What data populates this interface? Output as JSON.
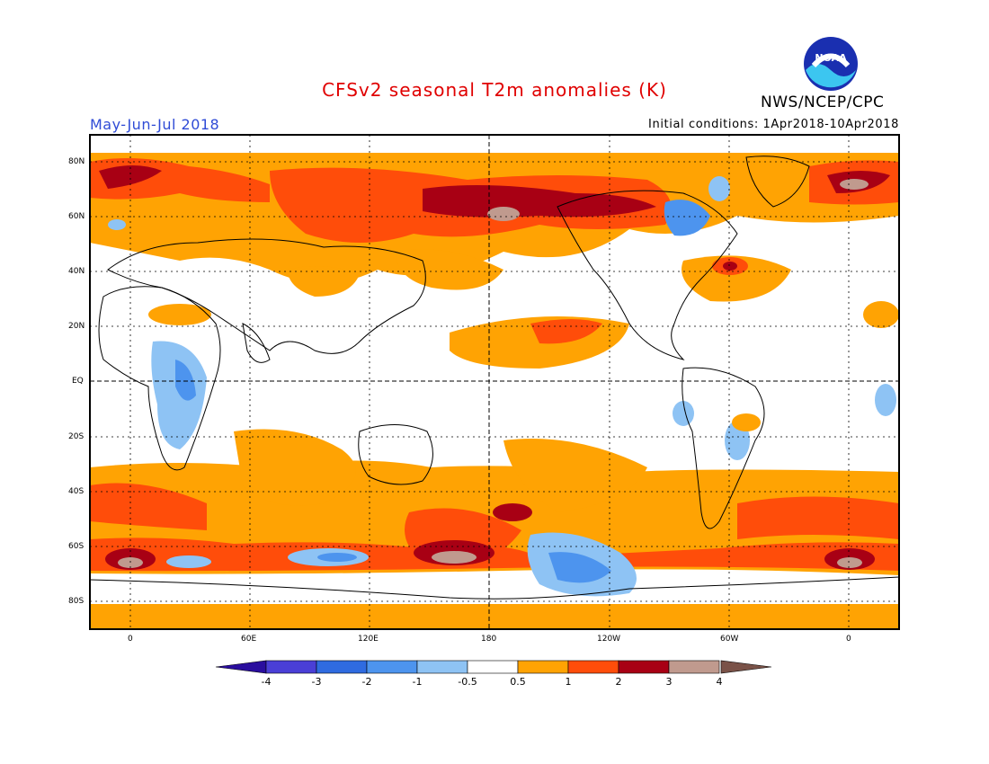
{
  "title": "CFSv2 seasonal T2m anomalies (K)",
  "period": "May-Jun-Jul 2018",
  "initial_conditions": "Initial conditions: 1Apr2018-10Apr2018",
  "agency": "NWS/NCEP/CPC",
  "logo_text": "NOAA",
  "lat_labels": [
    "80N",
    "60N",
    "40N",
    "20N",
    "EQ",
    "20S",
    "40S",
    "60S",
    "80S"
  ],
  "lon_labels": [
    "0",
    "60E",
    "120E",
    "180",
    "120W",
    "60W",
    "0"
  ],
  "colorbar": {
    "labels": [
      "-4",
      "-3",
      "-2",
      "-1",
      "-0.5",
      "0.5",
      "1",
      "2",
      "3",
      "4"
    ],
    "colors": [
      "#2a0e9e",
      "#4a3fd6",
      "#2f6be0",
      "#4d94ee",
      "#8ec3f4",
      "#ffffff",
      "#ffa303",
      "#ff4d0a",
      "#a80014",
      "#c09a8e",
      "#7a5248"
    ]
  },
  "colors": {
    "warm1": "#ffa303",
    "warm2": "#ff4d0a",
    "warm3": "#a80014",
    "warm4": "#c09a8e",
    "cool1": "#8ec3f4",
    "cool2": "#4d94ee",
    "cool3": "#2f6be0"
  }
}
